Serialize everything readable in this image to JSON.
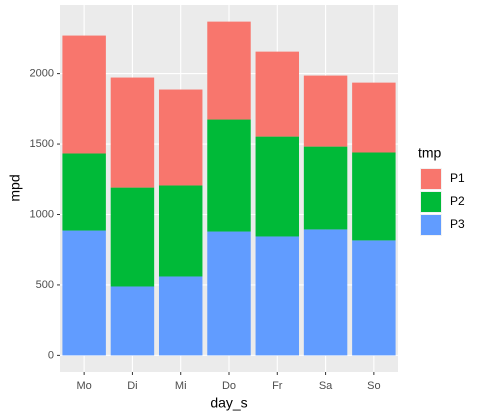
{
  "chart_data": {
    "type": "stacked-bar",
    "x_label": "day_s",
    "y_label": "mpd",
    "legend_title": "tmp",
    "categories": [
      "Mo",
      "Di",
      "Mi",
      "Do",
      "Fr",
      "Sa",
      "So"
    ],
    "series": [
      {
        "name": "P1",
        "color": "#F8766D",
        "values": [
          837,
          781,
          681,
          695,
          603,
          504,
          496
        ]
      },
      {
        "name": "P2",
        "color": "#00BA38",
        "values": [
          547,
          702,
          646,
          795,
          709,
          588,
          624
        ]
      },
      {
        "name": "P3",
        "color": "#619CFF",
        "values": [
          886,
          489,
          560,
          879,
          844,
          894,
          816
        ]
      }
    ],
    "ylim": [
      -118,
      2487
    ],
    "yticks": [
      0,
      500,
      1000,
      1500,
      2000
    ],
    "grid": true,
    "legend_position": "right"
  }
}
